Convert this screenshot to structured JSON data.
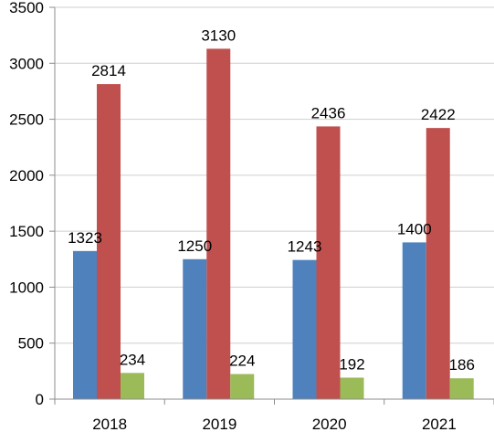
{
  "chart_data": {
    "type": "bar",
    "categories": [
      "2018",
      "2019",
      "2020",
      "2021"
    ],
    "series": [
      {
        "values": [
          1323,
          1250,
          1243,
          1400
        ],
        "color": "#4f81bd"
      },
      {
        "values": [
          2814,
          3130,
          2436,
          2422
        ],
        "color": "#c0504d"
      },
      {
        "values": [
          234,
          224,
          192,
          186
        ],
        "color": "#9bbb59"
      }
    ],
    "yticks": [
      "0",
      "500",
      "1000",
      "1500",
      "2000",
      "2500",
      "3000",
      "3500"
    ],
    "ylim": [
      0,
      3500
    ],
    "grid": true,
    "legend": "none",
    "title": "",
    "xlabel": "",
    "ylabel": ""
  }
}
